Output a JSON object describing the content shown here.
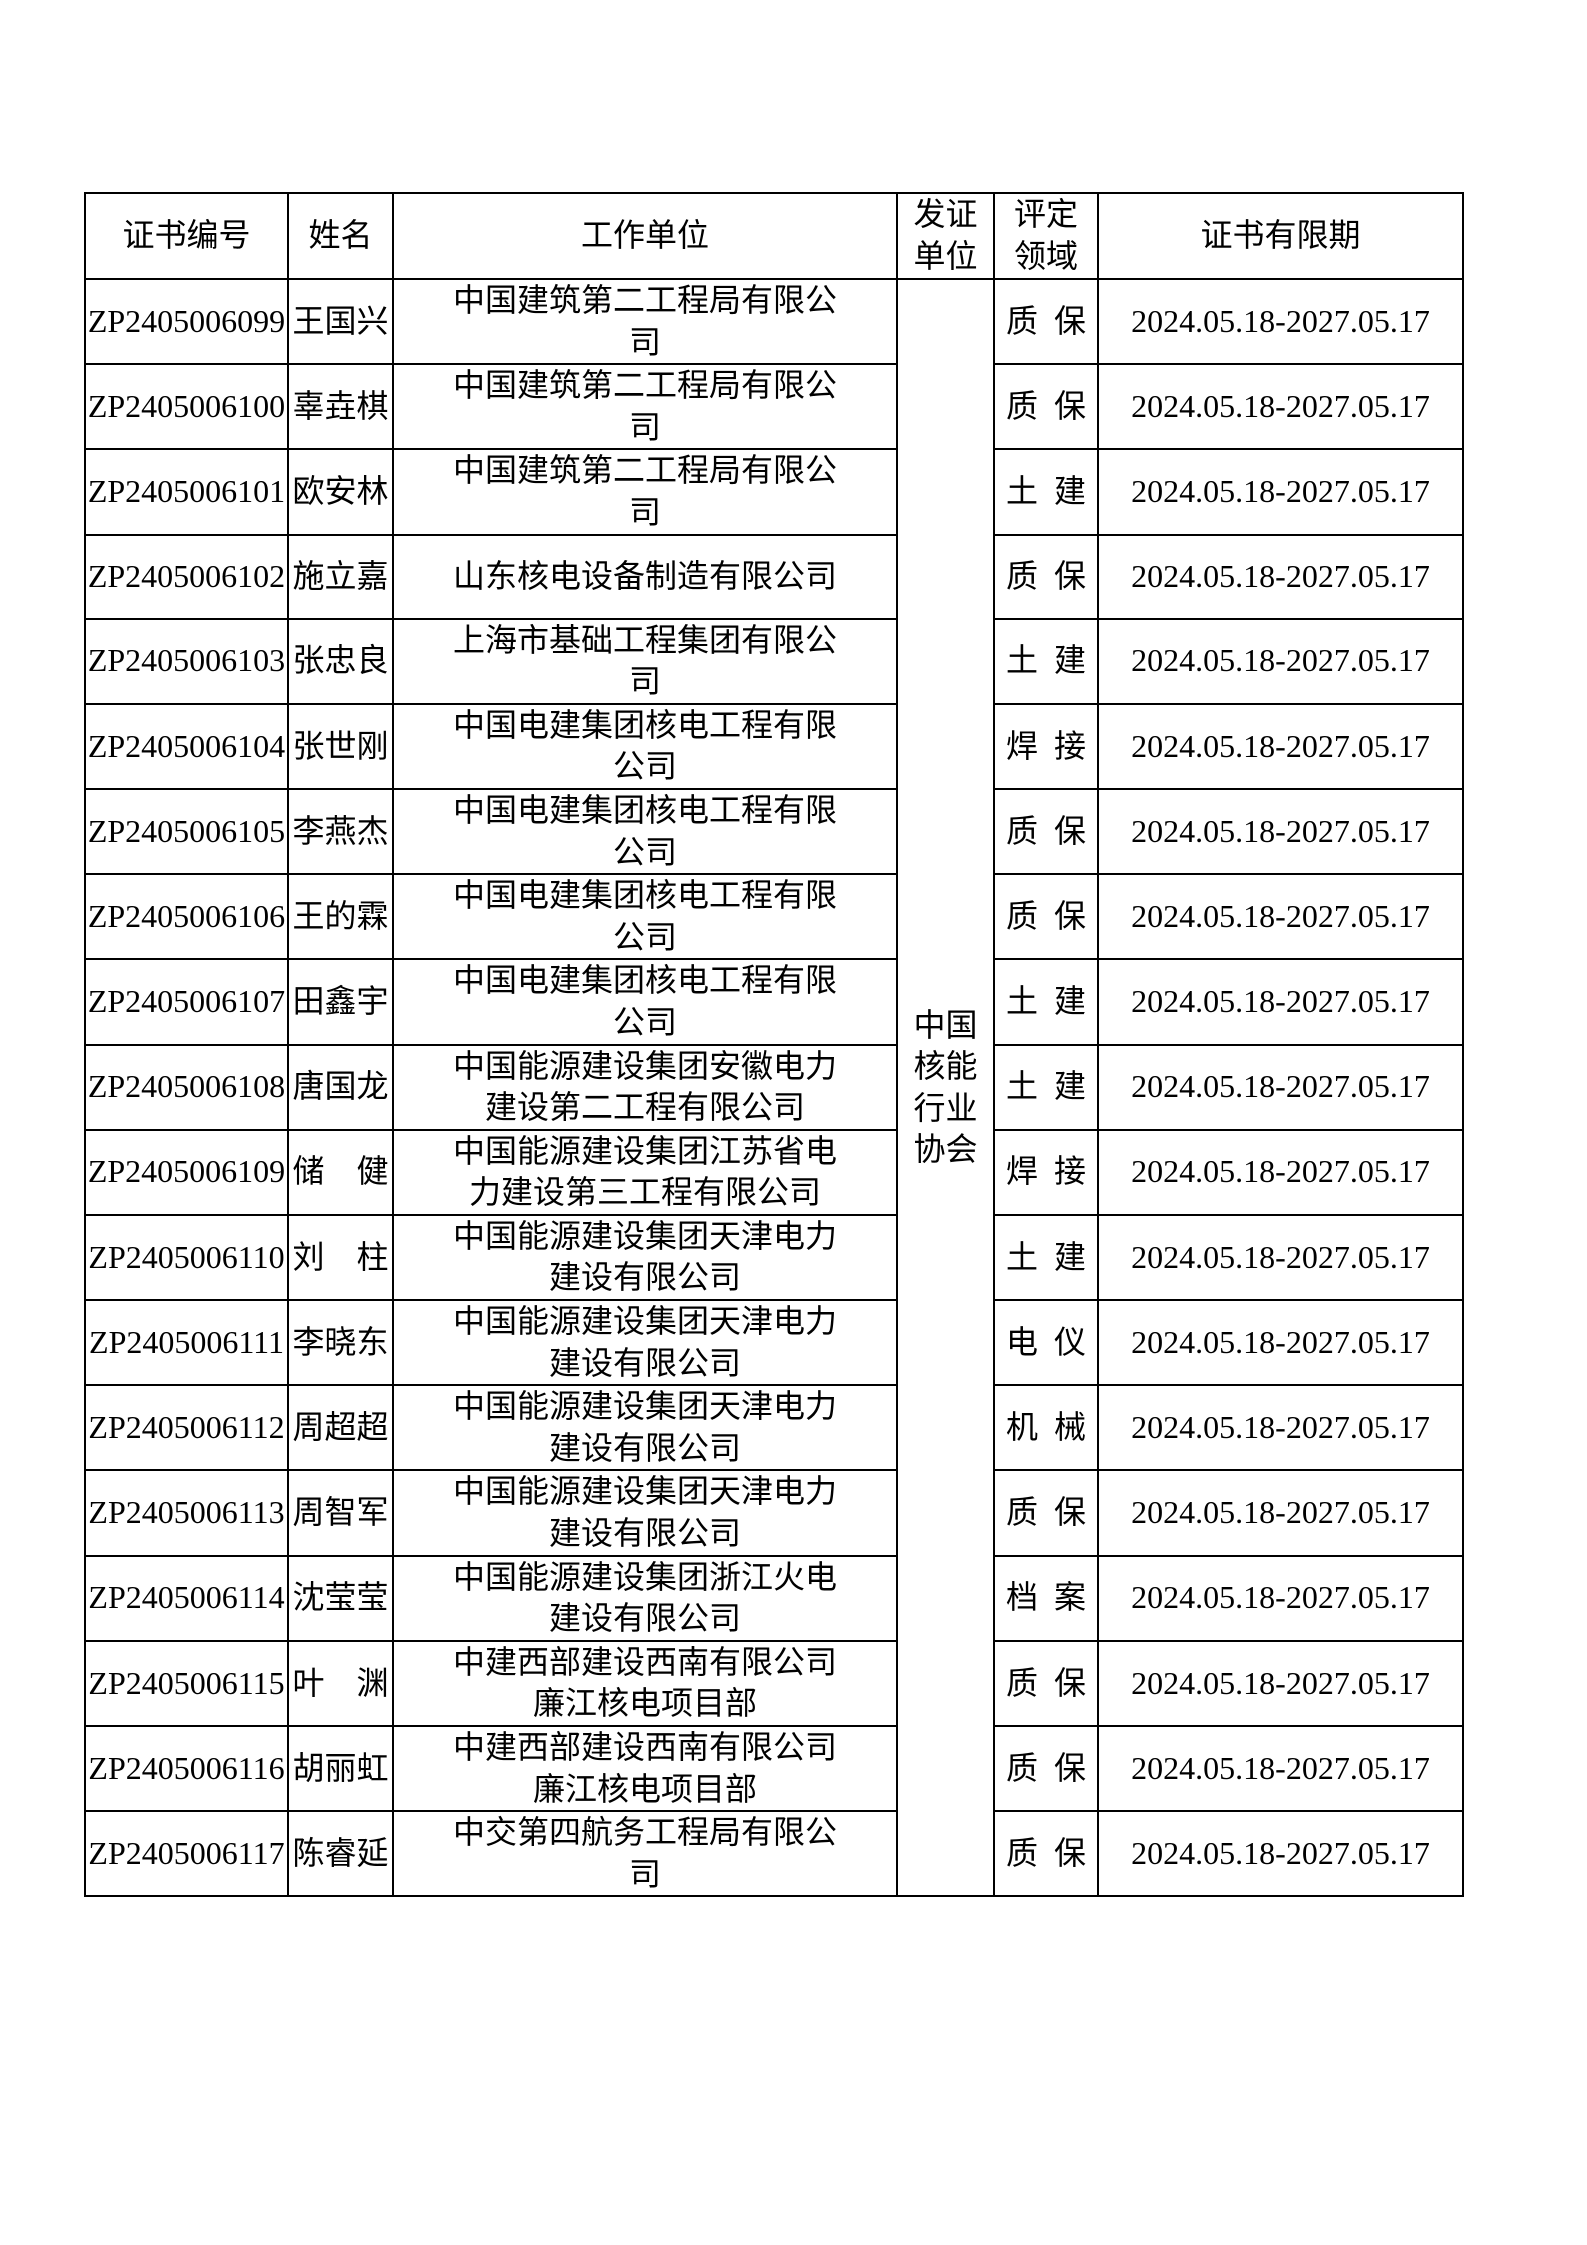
{
  "document": {
    "background": "#ffffff",
    "text_color": "#000000",
    "border_color": "#000000"
  },
  "table": {
    "header": {
      "cert": "证书编号",
      "name": "姓名",
      "company": "工作单位",
      "issuer": "发证单位",
      "field": "评定领域",
      "validity": "证书有限期"
    },
    "issuer": "中国核能行业协会",
    "rows": [
      {
        "cert": "ZP2405006099",
        "name": "王国兴",
        "company": "中国建筑第二工程局有限公司",
        "field": "质保",
        "validity": "2024.05.18-2027.05.17"
      },
      {
        "cert": "ZP2405006100",
        "name": "辜垚棋",
        "company": "中国建筑第二工程局有限公司",
        "field": "质保",
        "validity": "2024.05.18-2027.05.17"
      },
      {
        "cert": "ZP2405006101",
        "name": "欧安林",
        "company": "中国建筑第二工程局有限公司",
        "field": "土建",
        "validity": "2024.05.18-2027.05.17"
      },
      {
        "cert": "ZP2405006102",
        "name": "施立嘉",
        "company": "山东核电设备制造有限公司",
        "field": "质保",
        "validity": "2024.05.18-2027.05.17"
      },
      {
        "cert": "ZP2405006103",
        "name": "张忠良",
        "company": "上海市基础工程集团有限公司",
        "field": "土建",
        "validity": "2024.05.18-2027.05.17"
      },
      {
        "cert": "ZP2405006104",
        "name": "张世刚",
        "company": "中国电建集团核电工程有限公司",
        "field": "焊接",
        "validity": "2024.05.18-2027.05.17"
      },
      {
        "cert": "ZP2405006105",
        "name": "李燕杰",
        "company": "中国电建集团核电工程有限公司",
        "field": "质保",
        "validity": "2024.05.18-2027.05.17"
      },
      {
        "cert": "ZP2405006106",
        "name": "王的霖",
        "company": "中国电建集团核电工程有限公司",
        "field": "质保",
        "validity": "2024.05.18-2027.05.17"
      },
      {
        "cert": "ZP2405006107",
        "name": "田鑫宇",
        "company": "中国电建集团核电工程有限公司",
        "field": "土建",
        "validity": "2024.05.18-2027.05.17"
      },
      {
        "cert": "ZP2405006108",
        "name": "唐国龙",
        "company": "中国能源建设集团安徽电力建设第二工程有限公司",
        "field": "土建",
        "validity": "2024.05.18-2027.05.17"
      },
      {
        "cert": "ZP2405006109",
        "name": "储　健",
        "company": "中国能源建设集团江苏省电力建设第三工程有限公司",
        "field": "焊接",
        "validity": "2024.05.18-2027.05.17"
      },
      {
        "cert": "ZP2405006110",
        "name": "刘　柱",
        "company": "中国能源建设集团天津电力建设有限公司",
        "field": "土建",
        "validity": "2024.05.18-2027.05.17"
      },
      {
        "cert": "ZP2405006111",
        "name": "李晓东",
        "company": "中国能源建设集团天津电力建设有限公司",
        "field": "电仪",
        "validity": "2024.05.18-2027.05.17"
      },
      {
        "cert": "ZP2405006112",
        "name": "周超超",
        "company": "中国能源建设集团天津电力建设有限公司",
        "field": "机械",
        "validity": "2024.05.18-2027.05.17"
      },
      {
        "cert": "ZP2405006113",
        "name": "周智军",
        "company": "中国能源建设集团天津电力建设有限公司",
        "field": "质保",
        "validity": "2024.05.18-2027.05.17"
      },
      {
        "cert": "ZP2405006114",
        "name": "沈莹莹",
        "company": "中国能源建设集团浙江火电建设有限公司",
        "field": "档案",
        "validity": "2024.05.18-2027.05.17"
      },
      {
        "cert": "ZP2405006115",
        "name": "叶　渊",
        "company": "中建西部建设西南有限公司廉江核电项目部",
        "field": "质保",
        "validity": "2024.05.18-2027.05.17"
      },
      {
        "cert": "ZP2405006116",
        "name": "胡丽虹",
        "company": "中建西部建设西南有限公司廉江核电项目部",
        "field": "质保",
        "validity": "2024.05.18-2027.05.17"
      },
      {
        "cert": "ZP2405006117",
        "name": "陈睿延",
        "company": "中交第四航务工程局有限公司",
        "field": "质保",
        "validity": "2024.05.18-2027.05.17"
      }
    ]
  }
}
